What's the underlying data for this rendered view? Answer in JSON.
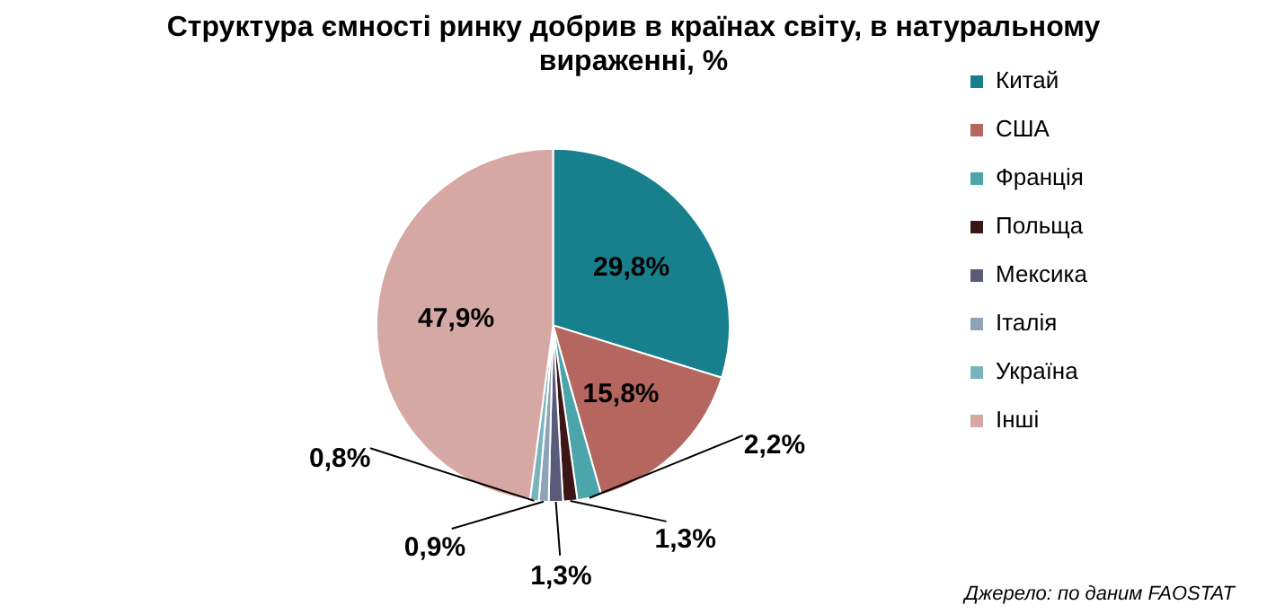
{
  "chart_data": {
    "type": "pie",
    "title": "Структура ємності ринку добрив в країнах світу, в натуральному вираженні, %",
    "categories": [
      "Китай",
      "США",
      "Франція",
      "Польща",
      "Мексика",
      "Італія",
      "Україна",
      "Інші"
    ],
    "values": [
      29.8,
      15.8,
      2.2,
      1.3,
      1.3,
      0.9,
      0.8,
      47.9
    ],
    "colors": [
      "#17808c",
      "#b5665f",
      "#4ba5ab",
      "#3a1616",
      "#5a5b78",
      "#8ea3b8",
      "#78b4bd",
      "#d6a8a3"
    ],
    "value_labels": [
      "29,8%",
      "15,8%",
      "2,2%",
      "1,3%",
      "1,3%",
      "0,9%",
      "0,8%",
      "47,9%"
    ],
    "legend": "right",
    "annotations": [
      "Джерело: по даним FAOSTAT"
    ]
  }
}
